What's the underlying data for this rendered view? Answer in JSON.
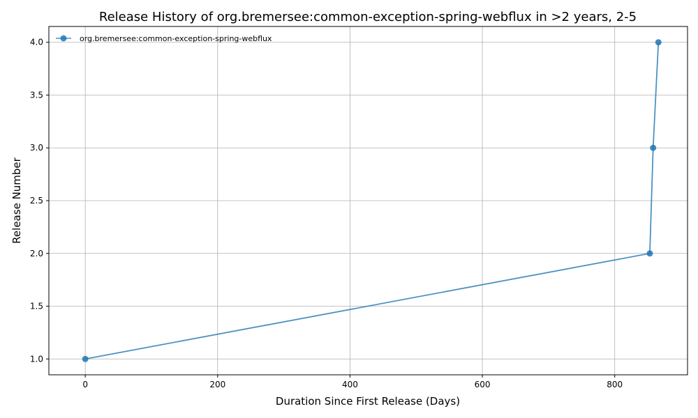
{
  "chart_data": {
    "type": "line",
    "title": "Release History of org.bremersee:common-exception-spring-webflux in >2 years, 2-5",
    "xlabel": "Duration Since First Release (Days)",
    "ylabel": "Release Number",
    "xlim": [
      -55,
      910
    ],
    "ylim": [
      0.85,
      4.15
    ],
    "xticks": [
      0,
      200,
      400,
      600,
      800
    ],
    "yticks": [
      1.0,
      1.5,
      2.0,
      2.5,
      3.0,
      3.5,
      4.0
    ],
    "xtick_labels": [
      "0",
      "200",
      "400",
      "600",
      "800"
    ],
    "ytick_labels": [
      "1.0",
      "1.5",
      "2.0",
      "2.5",
      "3.0",
      "3.5",
      "4.0"
    ],
    "grid": true,
    "legend_position": "top-left",
    "series": [
      {
        "name": "org.bremersee:common-exception-spring-webflux",
        "color": "#1f77b4",
        "x": [
          0,
          853,
          858,
          866
        ],
        "y": [
          1,
          2,
          3,
          4
        ]
      }
    ]
  }
}
